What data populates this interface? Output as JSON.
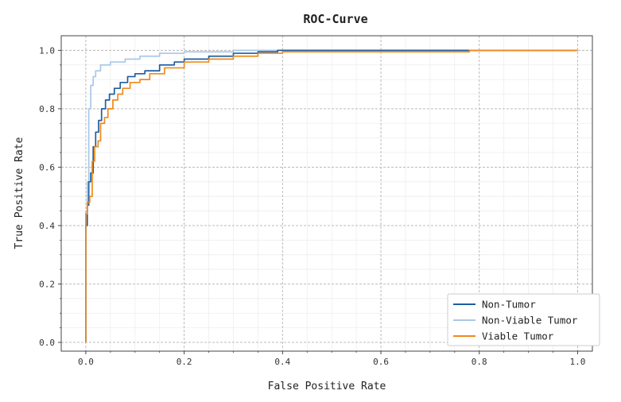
{
  "chart_data": {
    "type": "line",
    "title": "ROC-Curve",
    "xlabel": "False Positive Rate",
    "ylabel": "True Positive Rate",
    "xlim": [
      -0.05,
      1.03
    ],
    "ylim": [
      -0.03,
      1.05
    ],
    "xticks": [
      "0.0",
      "0.2",
      "0.4",
      "0.6",
      "0.8",
      "1.0"
    ],
    "yticks": [
      "0.0",
      "0.2",
      "0.4",
      "0.6",
      "0.8",
      "1.0"
    ],
    "grid": true,
    "legend_position": "lower-right",
    "series": [
      {
        "name": "Non-Tumor",
        "color": "#1f5f9e",
        "x": [
          0.0,
          0.0,
          0.003,
          0.003,
          0.006,
          0.006,
          0.01,
          0.01,
          0.015,
          0.015,
          0.02,
          0.02,
          0.026,
          0.026,
          0.032,
          0.032,
          0.04,
          0.04,
          0.048,
          0.048,
          0.058,
          0.058,
          0.07,
          0.07,
          0.085,
          0.085,
          0.1,
          0.1,
          0.12,
          0.12,
          0.15,
          0.15,
          0.18,
          0.18,
          0.2,
          0.2,
          0.25,
          0.25,
          0.3,
          0.3,
          0.35,
          0.35,
          0.39,
          0.39,
          0.6,
          1.0
        ],
        "y": [
          0.0,
          0.4,
          0.4,
          0.47,
          0.47,
          0.55,
          0.55,
          0.58,
          0.58,
          0.67,
          0.67,
          0.72,
          0.72,
          0.76,
          0.76,
          0.8,
          0.8,
          0.83,
          0.83,
          0.85,
          0.85,
          0.87,
          0.87,
          0.89,
          0.89,
          0.91,
          0.91,
          0.92,
          0.92,
          0.93,
          0.93,
          0.95,
          0.95,
          0.96,
          0.96,
          0.97,
          0.97,
          0.98,
          0.98,
          0.99,
          0.99,
          0.995,
          0.995,
          1.0,
          1.0,
          1.0
        ]
      },
      {
        "name": "Non-Viable Tumor",
        "color": "#a9c8e8",
        "x": [
          0.0,
          0.0,
          0.003,
          0.003,
          0.006,
          0.006,
          0.01,
          0.01,
          0.015,
          0.015,
          0.02,
          0.02,
          0.03,
          0.03,
          0.05,
          0.05,
          0.08,
          0.08,
          0.11,
          0.11,
          0.15,
          0.15,
          0.2,
          0.2,
          0.3,
          0.3,
          0.8,
          1.0
        ],
        "y": [
          0.0,
          0.45,
          0.45,
          0.55,
          0.55,
          0.8,
          0.8,
          0.88,
          0.88,
          0.91,
          0.91,
          0.93,
          0.93,
          0.95,
          0.95,
          0.96,
          0.96,
          0.97,
          0.97,
          0.98,
          0.98,
          0.99,
          0.99,
          0.995,
          0.995,
          1.0,
          1.0,
          1.0
        ]
      },
      {
        "name": "Viable Tumor",
        "color": "#f0891c",
        "x": [
          0.0,
          0.0,
          0.003,
          0.003,
          0.008,
          0.008,
          0.013,
          0.013,
          0.018,
          0.018,
          0.025,
          0.025,
          0.03,
          0.03,
          0.038,
          0.038,
          0.045,
          0.045,
          0.055,
          0.055,
          0.065,
          0.065,
          0.075,
          0.075,
          0.09,
          0.09,
          0.11,
          0.11,
          0.13,
          0.13,
          0.16,
          0.16,
          0.2,
          0.2,
          0.25,
          0.25,
          0.3,
          0.3,
          0.35,
          0.35,
          0.4,
          0.4,
          0.78,
          0.78,
          1.0
        ],
        "y": [
          0.0,
          0.44,
          0.44,
          0.48,
          0.48,
          0.5,
          0.5,
          0.62,
          0.62,
          0.67,
          0.67,
          0.69,
          0.69,
          0.75,
          0.75,
          0.77,
          0.77,
          0.8,
          0.8,
          0.83,
          0.83,
          0.85,
          0.85,
          0.87,
          0.87,
          0.89,
          0.89,
          0.9,
          0.9,
          0.92,
          0.92,
          0.94,
          0.94,
          0.96,
          0.96,
          0.97,
          0.97,
          0.98,
          0.98,
          0.99,
          0.99,
          0.995,
          0.995,
          1.0,
          1.0
        ]
      }
    ]
  }
}
